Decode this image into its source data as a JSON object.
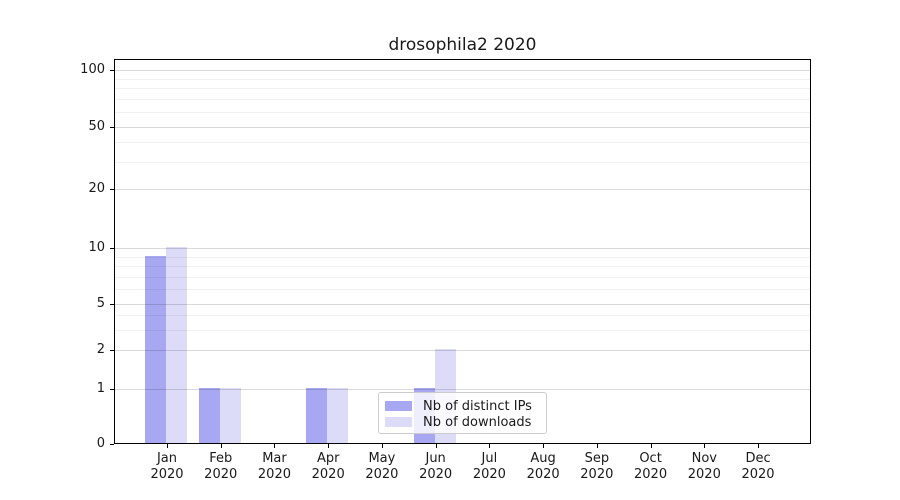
{
  "chart_data": {
    "type": "bar",
    "title": "drosophila2 2020",
    "year_label": "2020",
    "categories": [
      "Jan",
      "Feb",
      "Mar",
      "Apr",
      "May",
      "Jun",
      "Jul",
      "Aug",
      "Sep",
      "Oct",
      "Nov",
      "Dec"
    ],
    "series": [
      {
        "name": "Nb of distinct IPs",
        "color": "#a8a8f2",
        "values": [
          9,
          1,
          0,
          1,
          0,
          1,
          0,
          0,
          0,
          0,
          0,
          0
        ]
      },
      {
        "name": "Nb of downloads",
        "color": "#dcdcf8",
        "values": [
          10,
          1,
          0,
          1,
          0,
          2,
          0,
          0,
          0,
          0,
          0,
          0
        ]
      }
    ],
    "y_axis": {
      "scale": "log-like",
      "tick_labels": [
        0,
        1,
        2,
        5,
        10,
        20,
        50,
        100
      ],
      "minor_gridline_values": [
        3,
        4,
        6,
        7,
        8,
        9,
        30,
        40,
        60,
        70,
        80,
        90
      ],
      "range": [
        0,
        100
      ]
    },
    "x_axis": {
      "tick_count": 12
    },
    "legend": {
      "position": "lower center"
    },
    "grid": {
      "major": true,
      "minor": true
    }
  }
}
